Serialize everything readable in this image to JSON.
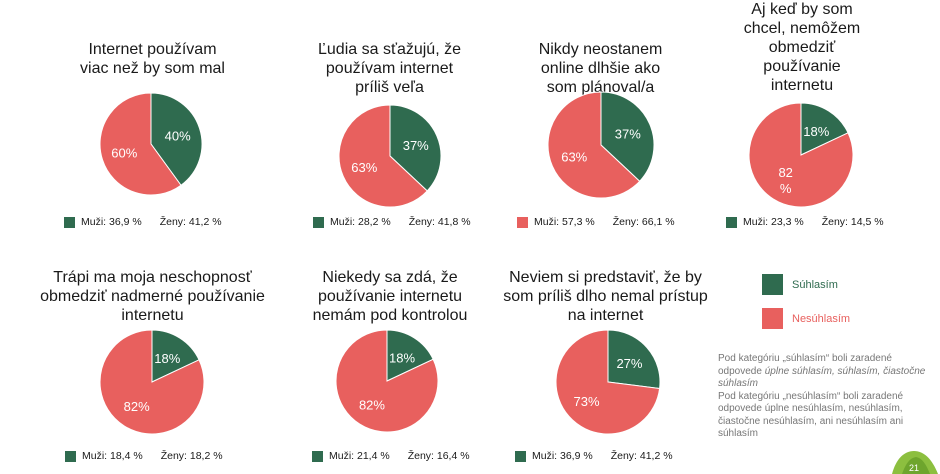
{
  "colors": {
    "agree": "#2f6b4f",
    "disagree": "#e8605e"
  },
  "legend": {
    "agree_label": "Súhlasím",
    "disagree_label": "Nesúhlasím"
  },
  "note": {
    "p1_prefix": "Pod kategóriu „súhlasím“ boli zaradené odpovede",
    "p1_items": "úplne súhlasím, súhlasím, čiastočne súhlasím",
    "p2": "Pod kategóriu „nesúhlasím“ boli zaradené odpovede úplne nesúhlasím, nesúhlasím, čiastočne nesúhlasím, ani nesúhlasím ani súhlasím"
  },
  "page_number": "21",
  "chart_data": [
    {
      "type": "pie",
      "title": "Internet používam viac než by som mal",
      "labels": [
        "40%",
        "60%"
      ],
      "values": [
        40,
        60
      ],
      "muzi": "Muži: 36,9 %",
      "zeny": "Ženy: 41,2 %"
    },
    {
      "type": "pie",
      "title": "Ľudia sa sťažujú, že používam internet príliš veľa",
      "labels": [
        "37%",
        "63%"
      ],
      "values": [
        37,
        63
      ],
      "muzi": "Muži: 28,2 %",
      "zeny": "Ženy: 41,8 %"
    },
    {
      "type": "pie",
      "title": "Nikdy neostanem online dlhšie ako som plánoval/a",
      "labels": [
        "37%",
        "63%"
      ],
      "values": [
        37,
        63
      ],
      "muzi": "Muži: 57,3 %",
      "zeny": "Ženy: 66,1 %"
    },
    {
      "type": "pie",
      "title": "Aj keď by som chcel, nemôžem obmedziť používanie internetu",
      "labels": [
        "18%",
        "82 %"
      ],
      "values": [
        18,
        82
      ],
      "muzi": "Muži: 23,3 %",
      "zeny": "Ženy: 14,5 %"
    },
    {
      "type": "pie",
      "title": "Trápi ma moja neschopnosť obmedziť nadmerné používanie internetu",
      "labels": [
        "18%",
        "82%"
      ],
      "values": [
        18,
        82
      ],
      "muzi": "Muži: 18,4 %",
      "zeny": "Ženy: 18,2 %"
    },
    {
      "type": "pie",
      "title": "Niekedy sa zdá, že používanie internetu nemám pod kontrolou",
      "labels": [
        "18%",
        "82%"
      ],
      "values": [
        18,
        82
      ],
      "muzi": "Muži: 21,4 %",
      "zeny": "Ženy: 16,4 %"
    },
    {
      "type": "pie",
      "title": "Neviem si predstaviť, že by som príliš dlho nemal prístup na internet",
      "labels": [
        "27%",
        "73%"
      ],
      "values": [
        27,
        73
      ],
      "muzi": "Muži: 36,9 %",
      "zeny": "Ženy: 41,2 %"
    }
  ]
}
